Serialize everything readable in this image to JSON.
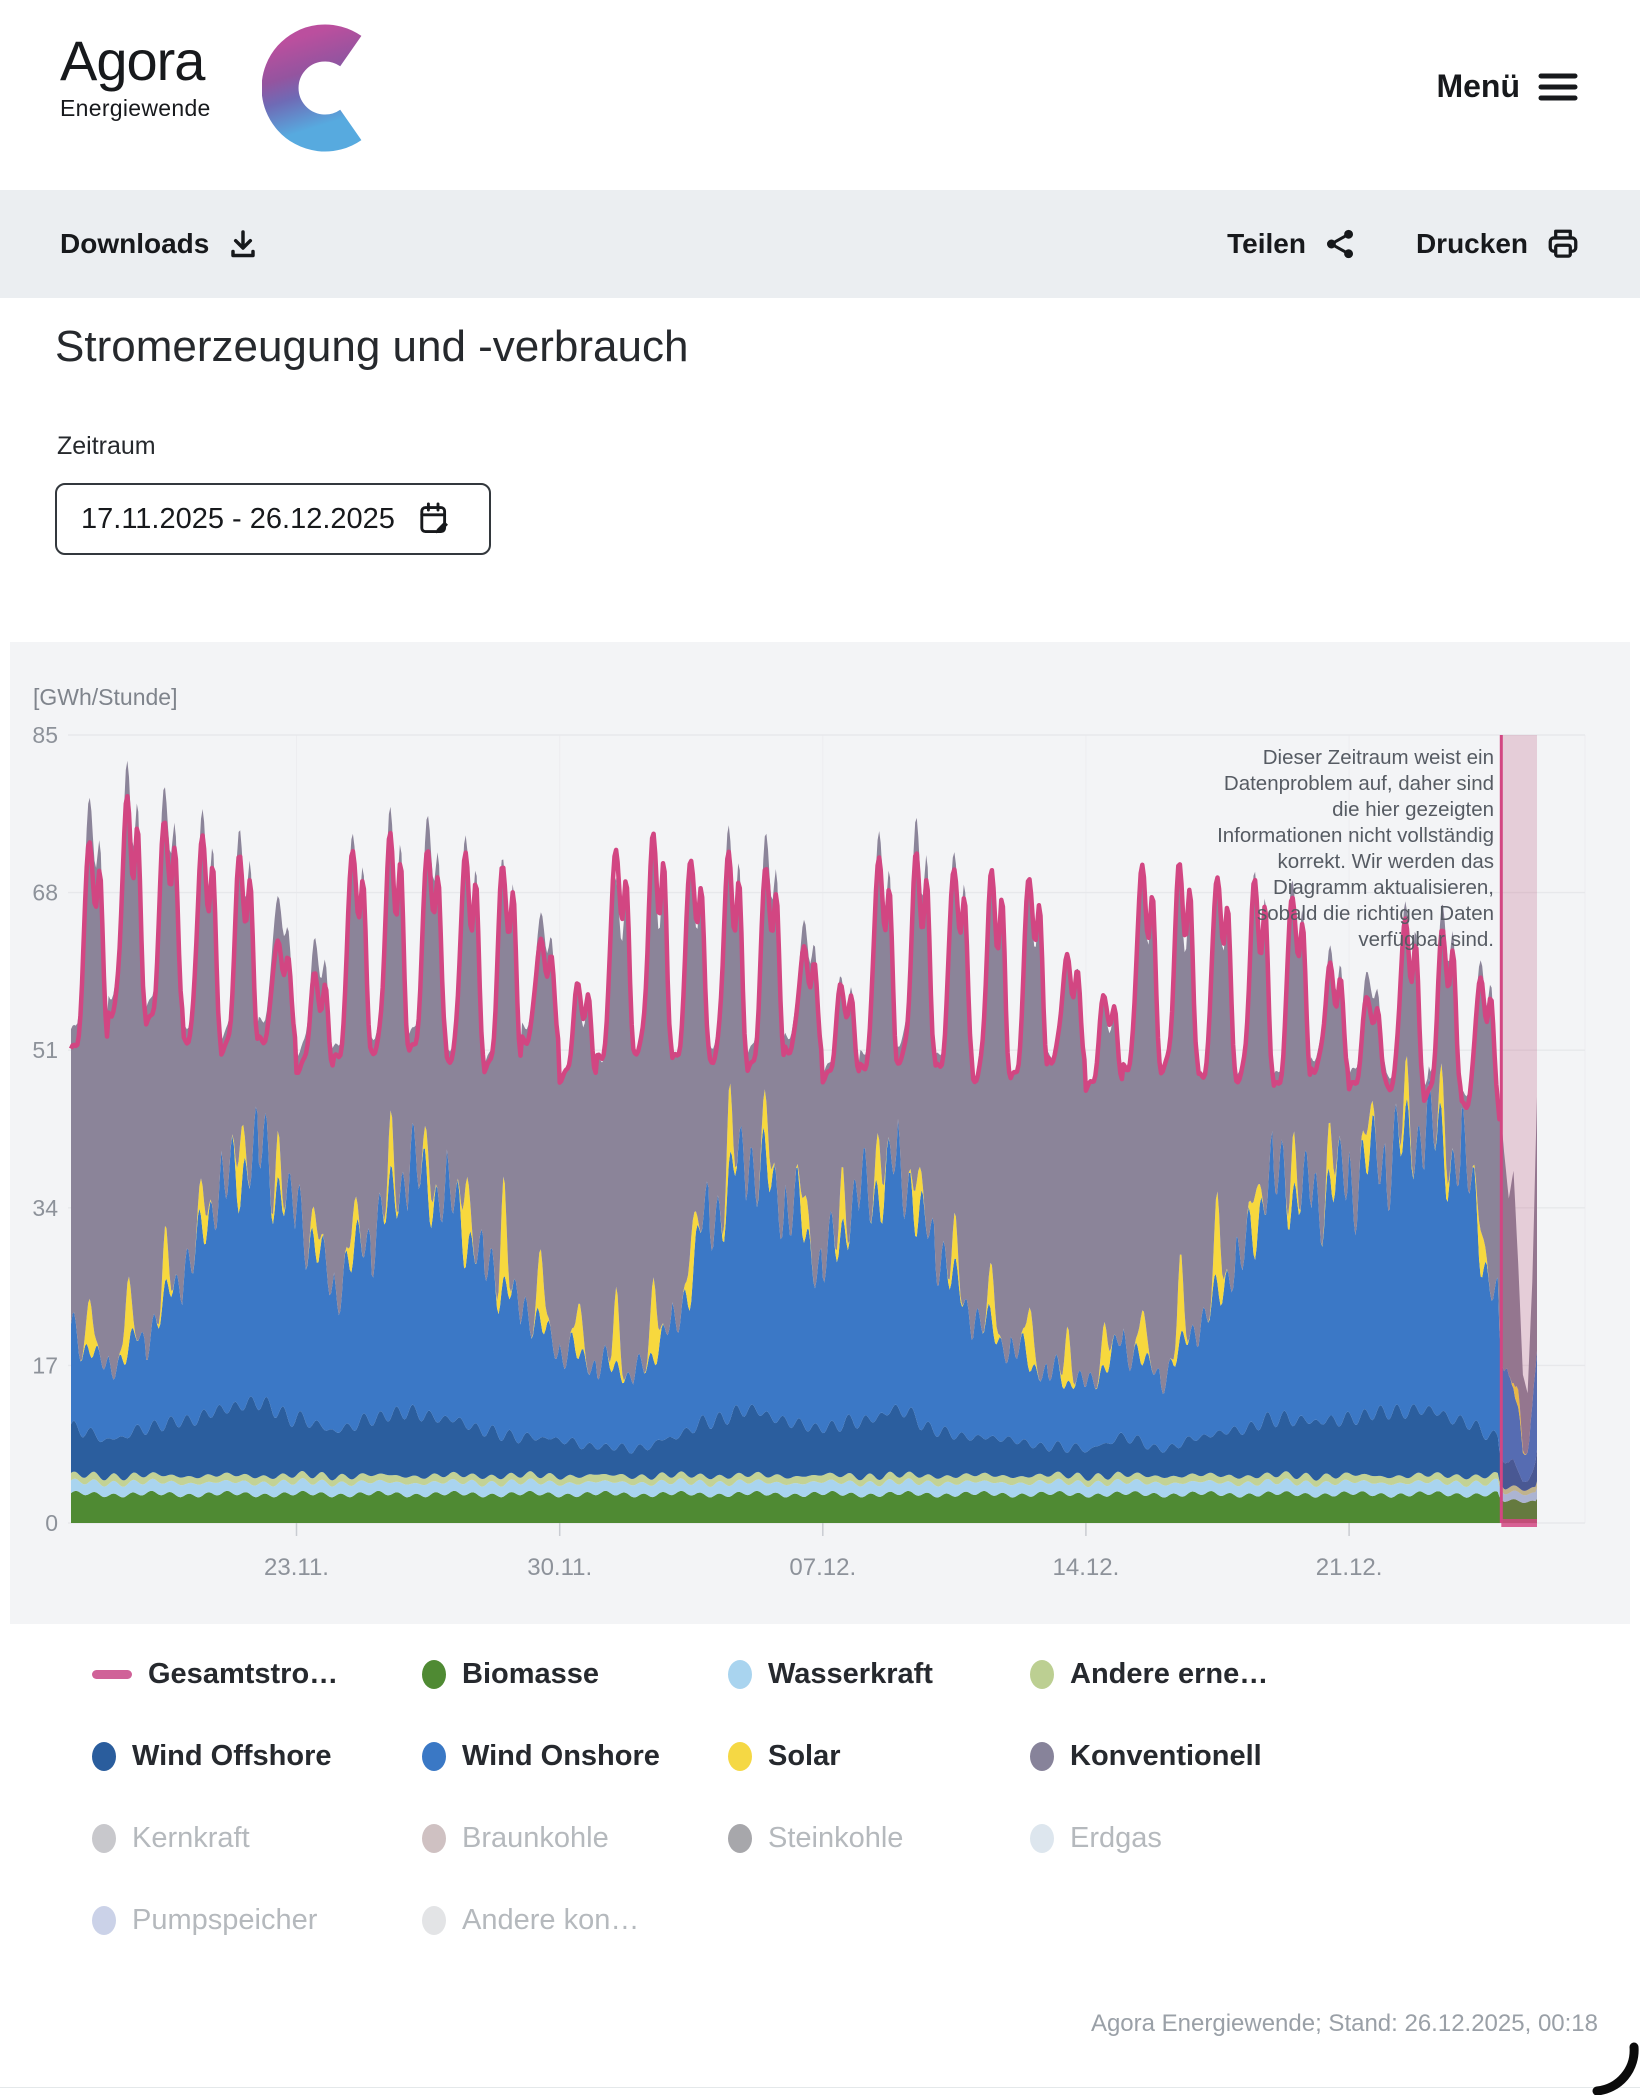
{
  "header": {
    "brand_name": "Agora",
    "brand_sub": "Energiewende",
    "menu_label": "Menü"
  },
  "toolbar": {
    "downloads_label": "Downloads",
    "share_label": "Teilen",
    "print_label": "Drucken"
  },
  "page": {
    "title": "Stromerzeugung und -verbrauch",
    "period_label": "Zeitraum",
    "period_value": "17.11.2025 - 26.12.2025"
  },
  "chart_notice": {
    "text": "Dieser Zeitraum weist ein\nDatenproblem auf, daher sind\ndie hier gezeigten\nInformationen nicht vollständig\nkorrekt. Wir werden das\nDiagramm aktualisieren,\nsobald die richtigen Daten\nverfügbar sind."
  },
  "legend": {
    "rows": [
      {
        "label": "Gesamtstro…",
        "color": "#d06298",
        "type": "dash",
        "active": true
      },
      {
        "label": "Biomasse",
        "color": "#4f8a33",
        "type": "dot",
        "active": true
      },
      {
        "label": "Wasserkraft",
        "color": "#a9d4ef",
        "type": "dot",
        "active": true
      },
      {
        "label": "Andere erne…",
        "color": "#bccf92",
        "type": "dot",
        "active": true
      },
      {
        "label": "Wind Offshore",
        "color": "#2a5d9d",
        "type": "dot",
        "active": true
      },
      {
        "label": "Wind Onshore",
        "color": "#3a78c5",
        "type": "dot",
        "active": true
      },
      {
        "label": "Solar",
        "color": "#f5d844",
        "type": "dot",
        "active": true
      },
      {
        "label": "Konventionell",
        "color": "#87839a",
        "type": "dot",
        "active": true
      },
      {
        "label": "Kernkraft",
        "color": "#c8c8cc",
        "type": "dot",
        "active": false
      },
      {
        "label": "Braunkohle",
        "color": "#cfc1c2",
        "type": "dot",
        "active": false
      },
      {
        "label": "Steinkohle",
        "color": "#a7a7ab",
        "type": "dot",
        "active": false
      },
      {
        "label": "Erdgas",
        "color": "#dde6ee",
        "type": "dot",
        "active": false
      },
      {
        "label": "Pumpspeicher",
        "color": "#cbd2e8",
        "type": "dot",
        "active": false
      },
      {
        "label": "Andere kon…",
        "color": "#e3e4e6",
        "type": "dot",
        "active": false
      }
    ]
  },
  "footer": {
    "attribution": "Agora Energiewende; Stand: 26.12.2025, 00:18"
  },
  "chart_data": {
    "type": "area",
    "stacked": true,
    "title": "Stromerzeugung und -verbrauch",
    "unit_label": "[GWh/Stunde]",
    "y_ticks": [
      0,
      17,
      34,
      51,
      68,
      85
    ],
    "y_max": 85,
    "x_ticks": [
      "23.11.",
      "30.11.",
      "07.12.",
      "14.12.",
      "21.12."
    ],
    "x_tick_day_index": [
      6,
      13,
      20,
      27,
      34
    ],
    "start_date": "17.11.2025",
    "end_date": "26.12.2025",
    "days": 39,
    "grid": true,
    "legend_position": "bottom",
    "series": [
      {
        "key": "bio",
        "name": "Biomasse",
        "color": "#4f8a33"
      },
      {
        "key": "was",
        "name": "Wasserkraft",
        "color": "#a9d4ef"
      },
      {
        "key": "and",
        "name": "Andere erneuerbare",
        "color": "#c3d295"
      },
      {
        "key": "off",
        "name": "Wind Offshore",
        "color": "#2b5e9e"
      },
      {
        "key": "on",
        "name": "Wind Onshore",
        "color": "#3b78c6"
      },
      {
        "key": "sol",
        "name": "Solar",
        "color": "#f7d83e"
      },
      {
        "key": "konv",
        "name": "Konventionell",
        "color": "#8b8499"
      }
    ],
    "consumption_line": {
      "name": "Gesamtstromverbrauch",
      "color": "#d24682",
      "ends_day": 38.05
    },
    "daily": {
      "comment": "one value per day, 17.11.2025 .. 25.12.2025 (GWh/h)",
      "cons_peak": [
        74,
        78,
        76,
        74,
        72,
        63,
        59,
        73,
        74,
        73,
        72,
        71,
        63,
        58,
        73,
        74,
        72,
        72,
        71,
        62,
        58,
        72,
        72,
        71,
        70,
        70,
        61,
        57,
        71,
        71,
        70,
        69,
        68,
        60,
        57,
        65,
        64,
        59,
        54
      ],
      "cons_trough": [
        51,
        55,
        54,
        52,
        51,
        52,
        49,
        50,
        51,
        51,
        50,
        49,
        52,
        48,
        50,
        51,
        50,
        50,
        49,
        51,
        48,
        49,
        50,
        49,
        48,
        48,
        50,
        47,
        49,
        49,
        48,
        48,
        47,
        49,
        47,
        47,
        46,
        45,
        44
      ],
      "wind_onshore_mean": [
        10,
        8,
        10,
        16,
        24,
        27,
        22,
        16,
        20,
        26,
        24,
        18,
        14,
        10,
        9,
        8,
        12,
        22,
        27,
        24,
        18,
        24,
        26,
        20,
        13,
        10,
        8,
        7,
        10,
        8,
        12,
        18,
        26,
        24,
        26,
        28,
        30,
        28,
        14
      ],
      "wind_offshore_mean": [
        5,
        4,
        5,
        6,
        7,
        8,
        6,
        5,
        6,
        7,
        6,
        5,
        4,
        4,
        3,
        3,
        4,
        6,
        7,
        6,
        5,
        6,
        7,
        5,
        4,
        4,
        3,
        3,
        4,
        3,
        4,
        5,
        6,
        6,
        6,
        7,
        7,
        6,
        4
      ],
      "solar_peak": [
        6,
        8,
        6,
        5,
        7,
        5,
        4,
        5,
        6,
        5,
        9,
        11,
        8,
        6,
        8,
        9,
        7,
        8,
        6,
        5,
        6,
        7,
        6,
        5,
        6,
        7,
        6,
        5,
        6,
        9,
        10,
        7,
        6,
        6,
        5,
        5,
        6,
        5,
        4
      ],
      "balance": [
        4,
        3,
        3,
        2,
        2,
        4,
        3,
        1,
        2,
        3,
        1,
        0,
        2,
        -2,
        -4,
        -3,
        -2,
        2,
        3,
        2,
        0,
        2,
        3,
        1,
        -1,
        -2,
        -1,
        -2,
        -2,
        -3,
        -2,
        0,
        1,
        1,
        2,
        1,
        2,
        1,
        0
      ],
      "biomasse_base": 3.1,
      "wasserkraft_base": 1.25,
      "andere_erneuerbare_base": 0.75
    },
    "anomaly": {
      "day_index": 38,
      "band_start_day": 38.05,
      "band_color": "#d24682",
      "total_top_by_3h": [
        46,
        40,
        35,
        38,
        28,
        16,
        14,
        26,
        46
      ]
    }
  }
}
